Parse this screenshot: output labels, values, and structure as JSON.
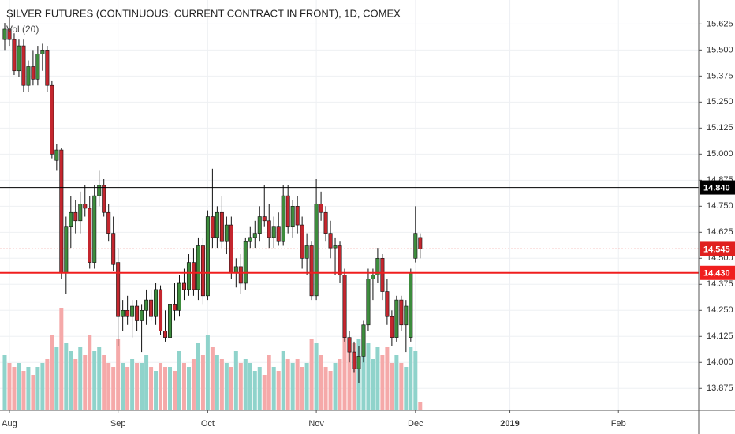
{
  "chart_data": {
    "type": "candlestick",
    "title": "SILVER FUTURES (CONTINUOUS: CURRENT CONTRACT IN FRONT), 1D, COMEX",
    "volume_label": "Vol (20)",
    "xlim": [
      -1,
      147
    ],
    "xticks": [
      {
        "value": 1,
        "label": "Aug"
      },
      {
        "value": 24,
        "label": "Sep"
      },
      {
        "value": 43,
        "label": "Oct"
      },
      {
        "value": 66,
        "label": "Nov"
      },
      {
        "value": 87,
        "label": "Dec"
      },
      {
        "value": 107,
        "label": "2019"
      },
      {
        "value": 130,
        "label": "Feb"
      }
    ],
    "ylim": [
      13.77,
      15.74
    ],
    "yticks": [
      13.875,
      {
        "value": 14,
        "label": "14.000"
      },
      14.125,
      {
        "value": 14.25,
        "label": "14.250"
      },
      14.375,
      {
        "value": 14.5,
        "label": "14.500"
      },
      14.625,
      {
        "value": 14.75,
        "label": "14.750"
      },
      14.875,
      {
        "value": 15,
        "label": "15.000"
      },
      15.125,
      {
        "value": 15.25,
        "label": "15.250"
      },
      15.375,
      {
        "value": 15.5,
        "label": "15.500"
      },
      15.625
    ],
    "grid": true,
    "up_color": "#3d8c3d",
    "down_color": "#c4262e",
    "vol_up_color": "#8fd3cb",
    "vol_down_color": "#f5a9a9",
    "open": [
      15.55,
      15.6,
      15.55,
      15.4,
      15.52,
      15.33,
      15.42,
      15.36,
      15.48,
      15.5,
      15.33,
      14.97,
      15.02,
      14.43,
      14.65,
      14.72,
      14.68,
      14.76,
      14.74,
      14.48,
      14.8,
      14.85,
      14.72,
      14.62,
      14.48,
      14.22,
      14.25,
      14.22,
      14.27,
      14.2,
      14.25,
      14.3,
      14.22,
      14.35,
      14.15,
      14.12,
      14.28,
      14.25,
      14.38,
      14.35,
      14.48,
      14.35,
      14.56,
      14.32,
      14.7,
      14.6,
      14.72,
      14.58,
      14.66,
      14.43,
      14.46,
      14.38,
      14.58,
      14.6,
      14.62,
      14.7,
      14.68,
      14.6,
      14.65,
      14.58,
      14.8,
      14.65,
      14.75,
      14.66,
      14.5,
      14.56,
      14.32,
      14.76,
      14.72,
      14.62,
      14.55,
      14.56,
      14.42,
      14.12,
      14.05,
      13.97,
      14.03,
      14.18,
      14.4,
      14.42,
      14.5,
      14.34,
      14.22,
      14.12,
      14.3,
      14.18,
      14.12,
      14.5,
      14.6
    ],
    "high": [
      15.63,
      15.66,
      15.58,
      15.55,
      15.55,
      15.45,
      15.5,
      15.52,
      15.53,
      15.52,
      15.35,
      15.05,
      15.03,
      14.7,
      14.8,
      14.78,
      14.82,
      14.85,
      14.8,
      14.85,
      14.92,
      14.88,
      14.76,
      14.7,
      14.55,
      14.3,
      14.32,
      14.3,
      14.3,
      14.28,
      14.35,
      14.35,
      14.38,
      14.37,
      14.25,
      14.3,
      14.38,
      14.42,
      14.45,
      14.52,
      14.55,
      14.6,
      14.6,
      14.73,
      14.93,
      14.75,
      14.8,
      14.7,
      14.7,
      14.5,
      14.52,
      14.6,
      14.65,
      14.68,
      14.75,
      14.85,
      14.76,
      14.7,
      14.72,
      14.85,
      14.85,
      14.78,
      14.8,
      14.7,
      14.62,
      14.58,
      14.88,
      14.82,
      14.75,
      14.68,
      14.6,
      14.58,
      14.45,
      14.15,
      14.1,
      14.08,
      14.2,
      14.45,
      14.45,
      14.55,
      14.52,
      14.4,
      14.25,
      14.32,
      14.32,
      14.3,
      14.45,
      14.75,
      14.62
    ],
    "low": [
      15.5,
      15.52,
      15.38,
      15.37,
      15.3,
      15.3,
      15.33,
      15.33,
      15.4,
      15.3,
      14.98,
      14.92,
      14.4,
      14.33,
      14.55,
      14.62,
      14.62,
      14.7,
      14.45,
      14.45,
      14.75,
      14.7,
      14.58,
      14.44,
      14.08,
      14.15,
      14.18,
      14.12,
      14.15,
      14.05,
      14.18,
      14.2,
      14.18,
      14.13,
      14.1,
      14.1,
      14.2,
      14.22,
      14.3,
      14.32,
      14.32,
      14.3,
      14.28,
      14.3,
      14.55,
      14.55,
      14.55,
      14.52,
      14.4,
      14.36,
      14.33,
      14.35,
      14.55,
      14.55,
      14.58,
      14.65,
      14.55,
      14.55,
      14.56,
      14.56,
      14.62,
      14.6,
      14.62,
      14.45,
      14.42,
      14.3,
      14.3,
      14.68,
      14.58,
      14.5,
      14.42,
      14.38,
      14.1,
      14.0,
      13.95,
      13.9,
      14.0,
      14.15,
      14.3,
      14.38,
      14.3,
      14.18,
      14.08,
      14.1,
      14.15,
      14.05,
      14.1,
      14.48,
      14.5
    ],
    "close": [
      15.6,
      15.55,
      15.4,
      15.52,
      15.33,
      15.42,
      15.36,
      15.48,
      15.5,
      15.33,
      15.0,
      15.02,
      14.43,
      14.65,
      14.72,
      14.68,
      14.76,
      14.74,
      14.48,
      14.8,
      14.85,
      14.72,
      14.62,
      14.47,
      14.22,
      14.25,
      14.22,
      14.27,
      14.2,
      14.25,
      14.3,
      14.22,
      14.35,
      14.15,
      14.12,
      14.28,
      14.25,
      14.38,
      14.35,
      14.48,
      14.35,
      14.56,
      14.32,
      14.7,
      14.6,
      14.72,
      14.58,
      14.66,
      14.43,
      14.46,
      14.38,
      14.58,
      14.6,
      14.62,
      14.7,
      14.68,
      14.6,
      14.65,
      14.58,
      14.8,
      14.65,
      14.75,
      14.66,
      14.5,
      14.56,
      14.32,
      14.76,
      14.72,
      14.62,
      14.55,
      14.56,
      14.42,
      14.12,
      14.05,
      13.97,
      14.03,
      14.18,
      14.4,
      14.42,
      14.5,
      14.34,
      14.22,
      14.12,
      14.3,
      14.18,
      14.27,
      14.43,
      14.62,
      14.545
    ],
    "volume": [
      70,
      60,
      55,
      60,
      50,
      55,
      45,
      55,
      60,
      65,
      95,
      80,
      130,
      85,
      75,
      65,
      80,
      70,
      95,
      75,
      80,
      70,
      60,
      55,
      90,
      60,
      55,
      65,
      60,
      60,
      70,
      55,
      50,
      60,
      55,
      55,
      50,
      75,
      60,
      55,
      65,
      85,
      70,
      95,
      80,
      70,
      65,
      60,
      55,
      75,
      60,
      65,
      60,
      50,
      55,
      45,
      70,
      55,
      50,
      75,
      65,
      60,
      65,
      55,
      60,
      90,
      85,
      70,
      55,
      50,
      60,
      65,
      95,
      80,
      85,
      90,
      75,
      85,
      65,
      80,
      70,
      80,
      60,
      70,
      60,
      55,
      80,
      75,
      10
    ],
    "hlines": [
      {
        "value": 14.84,
        "label": "14.840",
        "color": "#000000",
        "style": "solid"
      },
      {
        "value": 14.545,
        "label": "14.545",
        "color": "#e0201f",
        "style": "dotted"
      },
      {
        "value": 14.43,
        "label": "14.430",
        "color": "#f01e1e",
        "style": "thick"
      }
    ]
  }
}
